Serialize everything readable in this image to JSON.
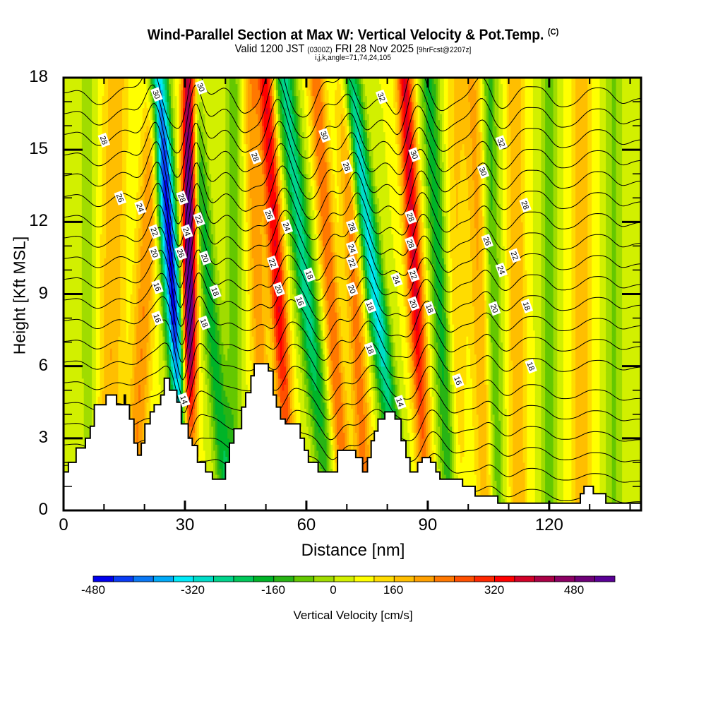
{
  "header": {
    "title": "Wind-Parallel Section at Max W: Vertical Velocity & Pot.Temp.",
    "copyright": "(C)",
    "valid_prefix": "Valid 1200 JST",
    "valid_utc": "(0300Z)",
    "valid_date": "FRI 28 Nov 2025",
    "forecast": "[9hrFcst@2207z]",
    "ijk": "i,j,k,angle=71,74,24,105"
  },
  "chart_data": {
    "type": "heatmap",
    "title": "Wind-Parallel Section at Max W: Vertical Velocity & Pot.Temp.",
    "xlabel": "Distance [nm]",
    "ylabel": "Height [Kft MSL]",
    "xlim": [
      0,
      142.7
    ],
    "ylim": [
      0,
      18
    ],
    "xticks": [
      "0",
      "30",
      "60",
      "90",
      "120"
    ],
    "xtick_values": [
      0,
      30,
      60,
      90,
      120
    ],
    "yticks": [
      "0",
      "3",
      "6",
      "9",
      "12",
      "15",
      "18"
    ],
    "ytick_values": [
      0,
      3,
      6,
      9,
      12,
      15,
      18
    ],
    "colorbar": {
      "title": "Vertical Velocity [cm/s]",
      "tick_labels": [
        "-480",
        "-320",
        "-160",
        "0",
        "160",
        "320",
        "480"
      ],
      "tick_values": [
        -480,
        -320,
        -160,
        0,
        160,
        320,
        480
      ],
      "colors": [
        "#0000ee",
        "#0a3cf5",
        "#0a78f5",
        "#00aaf8",
        "#00eaf8",
        "#00dcc8",
        "#00d48c",
        "#00c85a",
        "#00b428",
        "#28b414",
        "#64c800",
        "#a0dc00",
        "#d2f000",
        "#ffff00",
        "#ffdc00",
        "#ffbe00",
        "#ffa000",
        "#ff7800",
        "#ff5000",
        "#ff2800",
        "#ff0000",
        "#d20028",
        "#aa0046",
        "#8c0064",
        "#6e0078",
        "#5a0096"
      ],
      "range": [
        -520,
        520
      ]
    },
    "vertical_velocity_axes": [
      {
        "x0": 27,
        "slope": -0.4,
        "amp": -500,
        "width": 2.2
      },
      {
        "x0": 31,
        "slope": 0.0,
        "amp": 540,
        "width": 1.8
      },
      {
        "x0": 20,
        "slope": 0.3,
        "amp": 160,
        "width": 2.5
      },
      {
        "x0": 36,
        "slope": -0.5,
        "amp": -180,
        "width": 2.2
      },
      {
        "x0": 53,
        "slope": -0.35,
        "amp": 320,
        "width": 2.0
      },
      {
        "x0": 48,
        "slope": -0.2,
        "amp": 150,
        "width": 2.0
      },
      {
        "x0": 60,
        "slope": -0.6,
        "amp": -260,
        "width": 2.5
      },
      {
        "x0": 66,
        "slope": -0.4,
        "amp": 200,
        "width": 2.0
      },
      {
        "x0": 77,
        "slope": -0.7,
        "amp": -330,
        "width": 2.4
      },
      {
        "x0": 72,
        "slope": -0.3,
        "amp": 180,
        "width": 2.2
      },
      {
        "x0": 87,
        "slope": -0.3,
        "amp": 330,
        "width": 2.0
      },
      {
        "x0": 93,
        "slope": -0.3,
        "amp": -180,
        "width": 2.2
      },
      {
        "x0": 103,
        "slope": -0.2,
        "amp": 130,
        "width": 2.5
      },
      {
        "x0": 106,
        "slope": -0.1,
        "amp": -140,
        "width": 2.0
      },
      {
        "x0": 112,
        "slope": -0.05,
        "amp": 120,
        "width": 2.2
      },
      {
        "x0": 120,
        "slope": 0.0,
        "amp": -110,
        "width": 2.0
      },
      {
        "x0": 128,
        "slope": 0.0,
        "amp": 110,
        "width": 2.4
      },
      {
        "x0": 136,
        "slope": 0.0,
        "amp": -90,
        "width": 2.0
      },
      {
        "x0": 12,
        "slope": 0.1,
        "amp": 120,
        "width": 3.0
      },
      {
        "x0": 6,
        "slope": 0.0,
        "amp": -60,
        "width": 2.0
      },
      {
        "x0": 42,
        "slope": 0.0,
        "amp": -100,
        "width": 2.0
      },
      {
        "x0": 97,
        "slope": 0.0,
        "amp": 80,
        "width": 2.5
      }
    ],
    "terrain": [
      [
        0,
        1.6
      ],
      [
        1.2,
        1.6
      ],
      [
        1.2,
        2.0
      ],
      [
        3.1,
        2.0
      ],
      [
        3.1,
        2.6
      ],
      [
        5.4,
        2.6
      ],
      [
        5.4,
        3.0
      ],
      [
        6.6,
        3.0
      ],
      [
        6.6,
        3.5
      ],
      [
        7.6,
        3.5
      ],
      [
        7.6,
        4.4
      ],
      [
        10.5,
        4.4
      ],
      [
        10.5,
        4.8
      ],
      [
        13.1,
        4.8
      ],
      [
        13.1,
        4.4
      ],
      [
        15.0,
        4.4
      ],
      [
        15.0,
        4.8
      ],
      [
        15.3,
        4.8
      ],
      [
        15.3,
        4.4
      ],
      [
        16.3,
        4.4
      ],
      [
        16.3,
        3.8
      ],
      [
        17.4,
        3.8
      ],
      [
        17.4,
        2.8
      ],
      [
        18.3,
        2.8
      ],
      [
        18.3,
        2.3
      ],
      [
        19.2,
        2.3
      ],
      [
        19.2,
        2.8
      ],
      [
        20.1,
        2.8
      ],
      [
        20.1,
        3.6
      ],
      [
        21.4,
        3.6
      ],
      [
        21.4,
        4.1
      ],
      [
        22.4,
        4.1
      ],
      [
        22.4,
        4.4
      ],
      [
        24.0,
        4.4
      ],
      [
        24.0,
        4.8
      ],
      [
        24.9,
        4.8
      ],
      [
        24.9,
        5.5
      ],
      [
        26.2,
        5.5
      ],
      [
        26.2,
        5.0
      ],
      [
        28.0,
        5.0
      ],
      [
        28.0,
        4.5
      ],
      [
        29.1,
        4.5
      ],
      [
        29.1,
        3.6
      ],
      [
        30.8,
        3.6
      ],
      [
        30.8,
        3.0
      ],
      [
        31.8,
        3.0
      ],
      [
        31.8,
        2.7
      ],
      [
        33.1,
        2.7
      ],
      [
        33.1,
        2.0
      ],
      [
        35.1,
        2.0
      ],
      [
        35.1,
        1.6
      ],
      [
        36.8,
        1.6
      ],
      [
        36.8,
        1.3
      ],
      [
        40.0,
        1.3
      ],
      [
        40.0,
        2.0
      ],
      [
        41.0,
        2.0
      ],
      [
        41.0,
        2.8
      ],
      [
        42.1,
        2.8
      ],
      [
        42.1,
        3.4
      ],
      [
        44.0,
        3.4
      ],
      [
        44.0,
        4.3
      ],
      [
        45.0,
        4.3
      ],
      [
        45.0,
        4.9
      ],
      [
        46.3,
        4.9
      ],
      [
        46.3,
        5.6
      ],
      [
        47.1,
        5.6
      ],
      [
        47.1,
        6.1
      ],
      [
        50.6,
        6.1
      ],
      [
        50.6,
        5.8
      ],
      [
        51.8,
        5.8
      ],
      [
        51.8,
        4.8
      ],
      [
        52.6,
        4.8
      ],
      [
        52.6,
        4.3
      ],
      [
        53.6,
        4.3
      ],
      [
        53.6,
        3.8
      ],
      [
        54.8,
        3.8
      ],
      [
        54.8,
        3.6
      ],
      [
        58.5,
        3.6
      ],
      [
        58.5,
        3.0
      ],
      [
        59.5,
        3.0
      ],
      [
        59.5,
        2.5
      ],
      [
        60.5,
        2.5
      ],
      [
        60.5,
        2.0
      ],
      [
        62.9,
        2.0
      ],
      [
        62.9,
        1.6
      ],
      [
        67.7,
        1.6
      ],
      [
        67.7,
        2.5
      ],
      [
        72.2,
        2.5
      ],
      [
        72.2,
        2.2
      ],
      [
        73.9,
        2.2
      ],
      [
        73.9,
        1.6
      ],
      [
        75.1,
        1.6
      ],
      [
        75.1,
        2.2
      ],
      [
        76.0,
        2.2
      ],
      [
        76.0,
        2.9
      ],
      [
        76.8,
        2.9
      ],
      [
        76.8,
        3.3
      ],
      [
        77.7,
        3.3
      ],
      [
        77.7,
        3.8
      ],
      [
        79.4,
        3.8
      ],
      [
        79.4,
        4.1
      ],
      [
        81.9,
        4.1
      ],
      [
        81.9,
        3.8
      ],
      [
        83.4,
        3.8
      ],
      [
        83.4,
        2.9
      ],
      [
        84.6,
        2.9
      ],
      [
        84.6,
        2.2
      ],
      [
        85.6,
        2.2
      ],
      [
        85.6,
        1.6
      ],
      [
        87.5,
        1.6
      ],
      [
        87.5,
        2.0
      ],
      [
        88.6,
        2.0
      ],
      [
        88.6,
        2.2
      ],
      [
        90.7,
        2.2
      ],
      [
        90.7,
        2.0
      ],
      [
        92.0,
        2.0
      ],
      [
        92.0,
        1.6
      ],
      [
        93.0,
        1.6
      ],
      [
        93.0,
        1.3
      ],
      [
        98.6,
        1.3
      ],
      [
        98.6,
        1.0
      ],
      [
        101.7,
        1.0
      ],
      [
        101.7,
        0.6
      ],
      [
        107.3,
        0.6
      ],
      [
        107.3,
        0.3
      ],
      [
        127.7,
        0.3
      ],
      [
        127.7,
        0.7
      ],
      [
        128.6,
        0.7
      ],
      [
        128.6,
        1.0
      ],
      [
        130.9,
        1.0
      ],
      [
        130.9,
        0.7
      ],
      [
        134.0,
        0.7
      ],
      [
        134.0,
        0.3
      ],
      [
        142.7,
        0.3
      ]
    ],
    "theta_contours": {
      "levels_C": [
        14,
        15,
        16,
        17,
        18,
        19,
        20,
        21,
        22,
        23,
        24,
        25,
        26,
        27,
        28,
        29,
        30,
        31,
        32,
        33
      ],
      "labels": [
        {
          "text": "28",
          "x": 10,
          "y": 15.4
        },
        {
          "text": "30",
          "x": 23,
          "y": 17.3
        },
        {
          "text": "30",
          "x": 34,
          "y": 17.6
        },
        {
          "text": "26",
          "x": 14,
          "y": 13.0
        },
        {
          "text": "24",
          "x": 19,
          "y": 12.6
        },
        {
          "text": "28",
          "x": 29.3,
          "y": 13.0
        },
        {
          "text": "22",
          "x": 22.5,
          "y": 11.6
        },
        {
          "text": "24",
          "x": 30.5,
          "y": 11.6
        },
        {
          "text": "22",
          "x": 33.5,
          "y": 12.1
        },
        {
          "text": "20",
          "x": 22.5,
          "y": 10.7
        },
        {
          "text": "26",
          "x": 29.0,
          "y": 10.7
        },
        {
          "text": "20",
          "x": 35.0,
          "y": 10.5
        },
        {
          "text": "16",
          "x": 23.2,
          "y": 9.3
        },
        {
          "text": "18",
          "x": 37.5,
          "y": 9.1
        },
        {
          "text": "16",
          "x": 23.2,
          "y": 8.0
        },
        {
          "text": "18",
          "x": 34.8,
          "y": 7.8
        },
        {
          "text": "14",
          "x": 29.8,
          "y": 4.6
        },
        {
          "text": "28",
          "x": 47.4,
          "y": 14.7
        },
        {
          "text": "30",
          "x": 64.5,
          "y": 15.6
        },
        {
          "text": "32",
          "x": 78.6,
          "y": 17.2
        },
        {
          "text": "28",
          "x": 70.0,
          "y": 14.3
        },
        {
          "text": "30",
          "x": 86.7,
          "y": 14.8
        },
        {
          "text": "26",
          "x": 50.8,
          "y": 12.3
        },
        {
          "text": "24",
          "x": 55.2,
          "y": 11.8
        },
        {
          "text": "28",
          "x": 71.3,
          "y": 11.8
        },
        {
          "text": "28",
          "x": 85.8,
          "y": 12.2
        },
        {
          "text": "24",
          "x": 71.3,
          "y": 10.9
        },
        {
          "text": "28",
          "x": 85.8,
          "y": 11.1
        },
        {
          "text": "22",
          "x": 51.7,
          "y": 10.3
        },
        {
          "text": "22",
          "x": 71.3,
          "y": 10.3
        },
        {
          "text": "18",
          "x": 60.8,
          "y": 9.8
        },
        {
          "text": "24",
          "x": 82.3,
          "y": 9.6
        },
        {
          "text": "22",
          "x": 86.5,
          "y": 9.8
        },
        {
          "text": "20",
          "x": 53.2,
          "y": 9.2
        },
        {
          "text": "20",
          "x": 71.3,
          "y": 9.2
        },
        {
          "text": "16",
          "x": 58.5,
          "y": 8.7
        },
        {
          "text": "20",
          "x": 86.5,
          "y": 8.6
        },
        {
          "text": "18",
          "x": 75.8,
          "y": 8.5
        },
        {
          "text": "18",
          "x": 90.5,
          "y": 8.4
        },
        {
          "text": "18",
          "x": 75.8,
          "y": 6.7
        },
        {
          "text": "14",
          "x": 83.2,
          "y": 4.5
        },
        {
          "text": "32",
          "x": 108.2,
          "y": 15.3
        },
        {
          "text": "30",
          "x": 103.7,
          "y": 14.1
        },
        {
          "text": "28",
          "x": 114.1,
          "y": 12.7
        },
        {
          "text": "26",
          "x": 104.7,
          "y": 11.2
        },
        {
          "text": "24",
          "x": 108.2,
          "y": 10.0
        },
        {
          "text": "22",
          "x": 111.5,
          "y": 10.6
        },
        {
          "text": "20",
          "x": 106.5,
          "y": 8.4
        },
        {
          "text": "18",
          "x": 114.5,
          "y": 8.5
        },
        {
          "text": "16",
          "x": 97.5,
          "y": 5.4
        },
        {
          "text": "18",
          "x": 115.5,
          "y": 6.0
        }
      ]
    }
  }
}
